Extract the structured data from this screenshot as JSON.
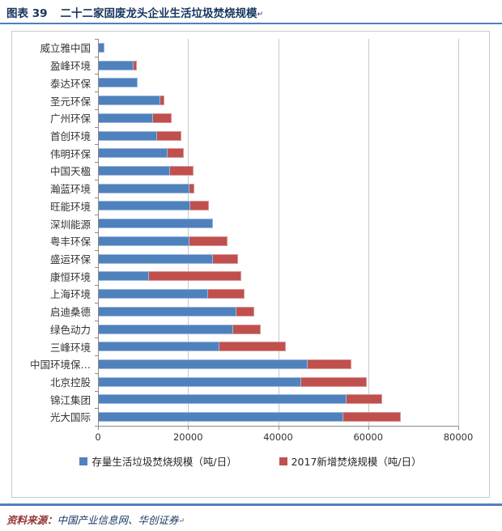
{
  "header": {
    "figure_label": "图表 39",
    "title": "二十二家固废龙头企业生活垃圾焚烧规模",
    "paragraph_mark": "↵"
  },
  "footer": {
    "source_label": "资料来源：",
    "source_text": "中国产业信息网、华创证券",
    "paragraph_mark": "↵"
  },
  "colors": {
    "accent_blue": "#4F81BD",
    "bar_blue": "#4F81BD",
    "bar_red": "#C0504D",
    "title_blue": "#17365D",
    "source_red": "#943634"
  },
  "chart_data": {
    "type": "bar",
    "orientation": "horizontal",
    "stacked": true,
    "grid": "vertical",
    "legend_position": "bottom",
    "xlim": [
      0,
      80000
    ],
    "xticks": [
      0,
      20000,
      40000,
      60000,
      80000
    ],
    "xtick_labels": [
      "0",
      "20000",
      "40000",
      "60000",
      "80000"
    ],
    "categories": [
      "威立雅中国",
      "盈峰环境",
      "泰达环保",
      "圣元环保",
      "广州环保",
      "首创环境",
      "伟明环保",
      "中国天楹",
      "瀚蓝环境",
      "旺能环境",
      "深圳能源",
      "粤丰环保",
      "盛运环保",
      "康恒环境",
      "上海环境",
      "启迪桑德",
      "绿色动力",
      "三峰环境",
      "中国环境保…",
      "北京控股",
      "锦江集团",
      "光大国际"
    ],
    "series": [
      {
        "name": "存量生活垃圾焚烧规模（吨/日）",
        "color": "#4F81BD",
        "values": [
          1300,
          7800,
          8700,
          13600,
          12100,
          12900,
          15200,
          15900,
          20200,
          20400,
          25300,
          20200,
          25400,
          11100,
          24300,
          30600,
          29900,
          26800,
          46300,
          44900,
          55000,
          54300
        ]
      },
      {
        "name": "2017新增焚烧规模（吨/日）",
        "color": "#C0504D",
        "values": [
          0,
          600,
          0,
          1000,
          4100,
          5500,
          3600,
          5200,
          1000,
          4000,
          0,
          8400,
          5600,
          20600,
          8000,
          4000,
          6100,
          14700,
          9800,
          14600,
          8000,
          12700
        ]
      }
    ]
  }
}
